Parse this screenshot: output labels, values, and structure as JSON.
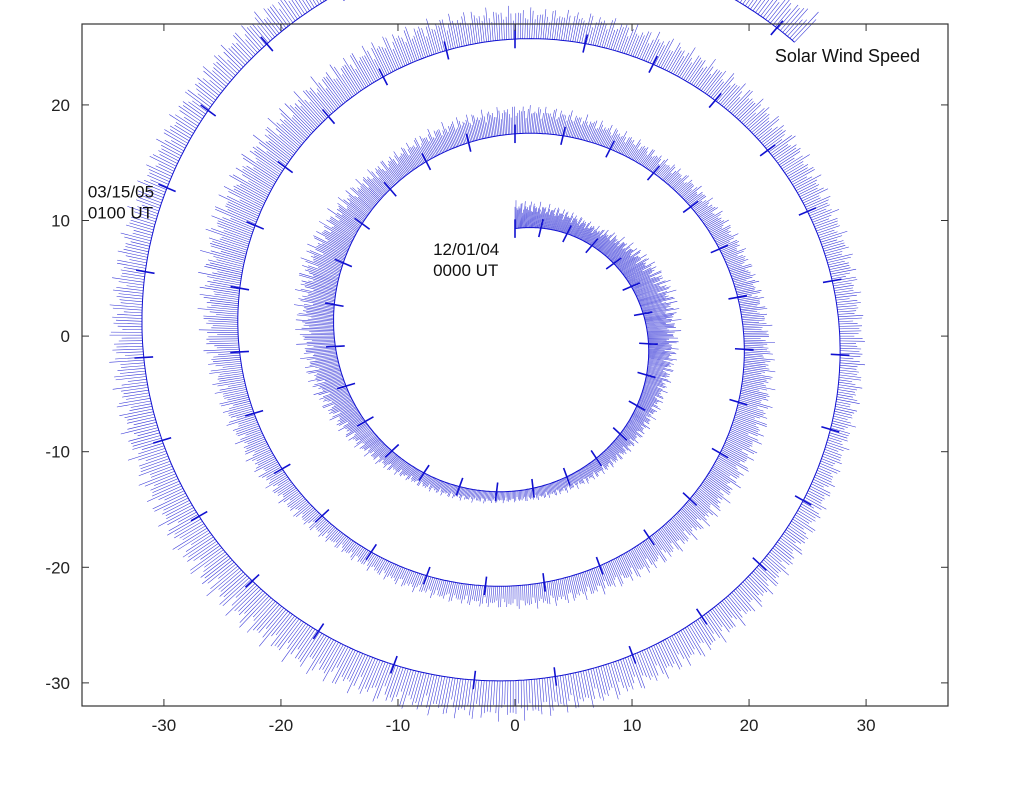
{
  "chart_data": {
    "type": "line",
    "title": "Solar Wind Speed",
    "xlabel": "",
    "ylabel": "",
    "xlim": [
      -37,
      37
    ],
    "ylim": [
      -32,
      27
    ],
    "grid": false,
    "x_ticks": [
      -30,
      -20,
      -10,
      0,
      10,
      20,
      30
    ],
    "x_tick_labels": [
      "-30",
      "-20",
      "-10",
      "0",
      "10",
      "20",
      "30"
    ],
    "y_ticks": [
      20,
      10,
      0,
      -10,
      -20,
      -30
    ],
    "y_tick_labels": [
      "20",
      "10",
      "0",
      "-10",
      "-20",
      "-30"
    ],
    "annotations": [
      {
        "lines": [
          "12/01/04",
          "0000 UT"
        ],
        "x": -7,
        "y": 7
      },
      {
        "lines": [
          "03/15/05",
          "0100 UT"
        ],
        "x": -36.5,
        "y": 12
      }
    ],
    "series": [
      {
        "style": "spiral baseline with radial speed ticks",
        "color": "#1010d0",
        "start": "12/01/04 0000 UT",
        "end": "03/15/05 0100 UT",
        "baseline_radius_start": 9.3,
        "baseline_radius_growth_per_turn": 8.2,
        "turns": 3.12,
        "start_angle_deg": 90,
        "direction": "clockwise",
        "amplitude_profile": [
          2.5,
          1.8,
          3.5,
          2.2,
          1.6,
          1.0,
          1.4,
          3.0,
          3.8,
          2.4,
          2.6,
          1.8,
          2.2,
          3.2,
          2.8,
          2.0,
          1.5,
          2.8,
          4.2,
          3.5,
          2.8,
          3.0,
          2.4,
          2.0,
          3.2,
          3.6,
          4.0,
          3.2,
          2.6,
          3.0,
          3.6,
          3.4
        ]
      }
    ]
  }
}
